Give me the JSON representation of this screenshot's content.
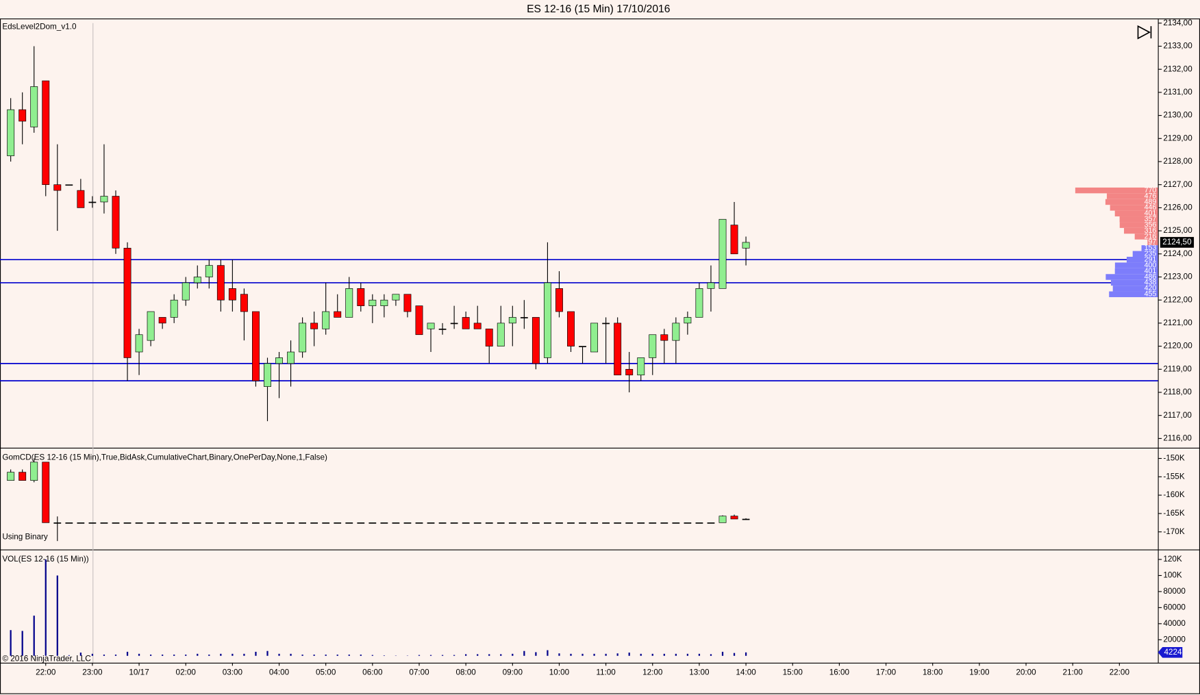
{
  "window_title": "ES 12-16 (15 Min)  17/10/2016",
  "copyright": "© 2016 NinjaTrader, LLC",
  "chart_data": [
    {
      "type": "candlestick",
      "label": "EdsLevel2Dom_v1.0",
      "x": [
        0,
        1,
        2,
        3,
        4,
        5,
        6,
        7,
        8,
        9,
        10,
        11,
        12,
        13,
        14,
        15,
        16,
        17,
        18,
        19,
        20,
        21,
        22,
        23,
        24,
        25,
        26,
        27,
        28,
        29,
        30,
        31,
        32,
        33,
        34,
        35,
        36,
        37,
        38,
        39,
        40,
        41,
        42,
        43,
        44,
        45,
        46,
        47,
        48,
        49,
        50,
        51,
        52,
        53,
        54,
        55,
        56,
        57,
        58,
        59,
        60,
        61,
        62,
        63
      ],
      "open": [
        2128.25,
        2130.25,
        2129.5,
        2131.5,
        2127,
        2127,
        2126.75,
        2126.25,
        2126.25,
        2126.5,
        2124.25,
        2119.75,
        2120.25,
        2121.25,
        2121.25,
        2122,
        2122.75,
        2123,
        2123.5,
        2122.5,
        2122.25,
        2121.5,
        2118.25,
        2119.25,
        2119.25,
        2119.75,
        2121,
        2120.75,
        2121.5,
        2121.25,
        2122.5,
        2121.75,
        2121.75,
        2122,
        2122.25,
        2121.75,
        2120.75,
        2120.75,
        2121,
        2121.25,
        2121,
        2120.75,
        2120,
        2121,
        2121.25,
        2121.25,
        2119.5,
        2122.5,
        2121.5,
        2120,
        2119.75,
        2121,
        2121,
        2119,
        2118.75,
        2119.5,
        2120.5,
        2120.25,
        2121,
        2121.25,
        2122.5,
        2122.5,
        2125.25,
        2124.25
      ],
      "high": [
        2130.75,
        2131,
        2133,
        2131.5,
        2128.75,
        2127,
        2127.25,
        2126.5,
        2128.75,
        2126.75,
        2124.5,
        2120.75,
        2121.5,
        2121.25,
        2122.25,
        2123,
        2123.5,
        2123.75,
        2123.75,
        2123.75,
        2122.5,
        2121.5,
        2119.5,
        2119.75,
        2120.25,
        2121.25,
        2121.5,
        2122.75,
        2122.25,
        2123,
        2122.75,
        2122.25,
        2122.25,
        2122.25,
        2122.25,
        2121.75,
        2121,
        2121,
        2121.75,
        2121.5,
        2121.75,
        2120.75,
        2121.75,
        2121.75,
        2122,
        2121.25,
        2124.5,
        2123.25,
        2121.5,
        2120,
        2121,
        2121.25,
        2121.25,
        2119.75,
        2119.5,
        2120.5,
        2120.75,
        2121.25,
        2121.5,
        2122.75,
        2123.5,
        2125.5,
        2126.25,
        2124.75
      ],
      "low": [
        2128,
        2128.75,
        2129.25,
        2126.5,
        2125,
        2127,
        2126,
        2126,
        2125.75,
        2124,
        2118.5,
        2118.75,
        2120,
        2120.75,
        2121,
        2121.75,
        2122.5,
        2122.5,
        2121.5,
        2121.5,
        2120.25,
        2118.25,
        2116.75,
        2117.75,
        2118.25,
        2119.5,
        2120,
        2120.5,
        2121.25,
        2121.25,
        2121.5,
        2121,
        2121.25,
        2121.75,
        2121.25,
        2120.5,
        2119.75,
        2120.5,
        2120.75,
        2120.75,
        2120.75,
        2119.25,
        2120,
        2120,
        2120.75,
        2119,
        2119.25,
        2121.25,
        2119.75,
        2119.25,
        2119.75,
        2119.25,
        2118.75,
        2118,
        2118.5,
        2118.75,
        2119.25,
        2119.25,
        2120.5,
        2121.25,
        2121.5,
        2122.5,
        2124,
        2123.5
      ],
      "close": [
        2130.25,
        2129.75,
        2131.25,
        2127,
        2126.75,
        2127,
        2126,
        2126.25,
        2126.5,
        2124.25,
        2119.5,
        2120.5,
        2121.5,
        2121,
        2122,
        2122.75,
        2123,
        2123.5,
        2122,
        2122,
        2121.5,
        2118.5,
        2119.25,
        2119.5,
        2119.75,
        2121,
        2120.75,
        2121.5,
        2121.25,
        2122.5,
        2121.75,
        2122,
        2122,
        2122.25,
        2121.5,
        2120.5,
        2121,
        2120.75,
        2121,
        2120.75,
        2120.75,
        2120,
        2121,
        2121.25,
        2121.25,
        2119.25,
        2122.75,
        2121.5,
        2120,
        2120,
        2121,
        2121,
        2118.75,
        2118.75,
        2119.5,
        2120.5,
        2120.25,
        2121,
        2121.25,
        2122.5,
        2122.75,
        2125.5,
        2124,
        2124.5
      ],
      "up_color": "#90ee90",
      "down_color": "#ff0000",
      "ylim": [
        2115.6,
        2134.2
      ],
      "yticks": [
        {
          "value": 2116,
          "label": "2116,00"
        },
        {
          "value": 2117,
          "label": "2117,00"
        },
        {
          "value": 2118,
          "label": "2118,00"
        },
        {
          "value": 2119,
          "label": "2119,00"
        },
        {
          "value": 2120,
          "label": "2120,00"
        },
        {
          "value": 2121,
          "label": "2121,00"
        },
        {
          "value": 2122,
          "label": "2122,00"
        },
        {
          "value": 2123,
          "label": "2123,00"
        },
        {
          "value": 2124,
          "label": "2124,00"
        },
        {
          "value": 2125,
          "label": "2125,00"
        },
        {
          "value": 2126,
          "label": "2126,00"
        },
        {
          "value": 2127,
          "label": "2127,00"
        },
        {
          "value": 2128,
          "label": "2128,00"
        },
        {
          "value": 2129,
          "label": "2129,00"
        },
        {
          "value": 2130,
          "label": "2130,00"
        },
        {
          "value": 2131,
          "label": "2131,00"
        },
        {
          "value": 2132,
          "label": "2132,00"
        },
        {
          "value": 2133,
          "label": "2133,00"
        },
        {
          "value": 2134,
          "label": "2134,00"
        }
      ],
      "hlines": [
        2123.75,
        2122.75,
        2119.25,
        2118.5
      ],
      "hline_color": "#0000cd",
      "last_price": {
        "value": 2124.5,
        "label": "2124,50"
      },
      "profile": [
        {
          "color": "#f38585",
          "levels": [
            2126.75,
            2126.5,
            2126.25,
            2126,
            2125.75,
            2125.5,
            2125.25,
            2125,
            2124.75,
            2124.5
          ],
          "values": [
            770,
            476,
            489,
            446,
            401,
            357,
            356,
            316,
            216,
            97
          ]
        },
        {
          "color": "#7d7dfb",
          "levels": [
            2124.25,
            2124,
            2123.75,
            2123.5,
            2123.25,
            2123,
            2122.75,
            2122.5,
            2122.25
          ],
          "values": [
            153,
            235,
            291,
            400,
            401,
            486,
            438,
            420,
            455
          ]
        }
      ]
    },
    {
      "type": "candlestick",
      "label": "GomCD(ES 12-16 (15 Min),True,BidAsk,CumulativeChart,Binary,OnePerDay,None,1,False)",
      "note": "Using Binary",
      "x": [
        0,
        1,
        2,
        3,
        4,
        5,
        6,
        7,
        8,
        9,
        10,
        11,
        12,
        13,
        14,
        15,
        16,
        17,
        18,
        19,
        20,
        21,
        22,
        23,
        24,
        25,
        26,
        27,
        28,
        29,
        30,
        31,
        32,
        33,
        34,
        35,
        36,
        37,
        38,
        39,
        40,
        41,
        42,
        43,
        44,
        45,
        46,
        47,
        48,
        49,
        50,
        51,
        52,
        53,
        54,
        55,
        56,
        57,
        58,
        59,
        60,
        61,
        62,
        63
      ],
      "open": [
        -156000,
        -153750,
        -156000,
        -151000,
        -167500,
        -167500,
        -167500,
        -167500,
        -167500,
        -167500,
        -167500,
        -167500,
        -167500,
        -167500,
        -167500,
        -167500,
        -167500,
        -167500,
        -167500,
        -167500,
        -167500,
        -167500,
        -167500,
        -167500,
        -167500,
        -167500,
        -167500,
        -167500,
        -167500,
        -167500,
        -167500,
        -167500,
        -167500,
        -167500,
        -167500,
        -167500,
        -167500,
        -167500,
        -167500,
        -167500,
        -167500,
        -167500,
        -167500,
        -167500,
        -167500,
        -167500,
        -167500,
        -167500,
        -167500,
        -167500,
        -167500,
        -167500,
        -167500,
        -167500,
        -167500,
        -167500,
        -167500,
        -167500,
        -167500,
        -167500,
        -167500,
        -167500,
        -165700,
        -166500
      ],
      "high": [
        -153000,
        -153000,
        -150000,
        -151000,
        -165800,
        -167500,
        -167500,
        -167500,
        -167500,
        -167500,
        -167500,
        -167500,
        -167500,
        -167500,
        -167500,
        -167500,
        -167500,
        -167500,
        -167500,
        -167500,
        -167500,
        -167500,
        -167500,
        -167500,
        -167500,
        -167500,
        -167500,
        -167500,
        -167500,
        -167500,
        -167500,
        -167500,
        -167500,
        -167500,
        -167500,
        -167500,
        -167500,
        -167500,
        -167500,
        -167500,
        -167500,
        -167500,
        -167500,
        -167500,
        -167500,
        -167500,
        -167500,
        -167500,
        -167500,
        -167500,
        -167500,
        -167500,
        -167500,
        -167500,
        -167500,
        -167500,
        -167500,
        -167500,
        -167500,
        -167500,
        -167500,
        -165500,
        -165300,
        -166300
      ],
      "low": [
        -156000,
        -156000,
        -156500,
        -167500,
        -172500,
        -167500,
        -167500,
        -167500,
        -167500,
        -167500,
        -167500,
        -167500,
        -167500,
        -167500,
        -167500,
        -167500,
        -167500,
        -167500,
        -167500,
        -167500,
        -167500,
        -167500,
        -167500,
        -167500,
        -167500,
        -167500,
        -167500,
        -167500,
        -167500,
        -167500,
        -167500,
        -167500,
        -167500,
        -167500,
        -167500,
        -167500,
        -167500,
        -167500,
        -167500,
        -167500,
        -167500,
        -167500,
        -167500,
        -167500,
        -167500,
        -167500,
        -167500,
        -167500,
        -167500,
        -167500,
        -167500,
        -167500,
        -167500,
        -167500,
        -167500,
        -167500,
        -167500,
        -167500,
        -167500,
        -167500,
        -167500,
        -167500,
        -166500,
        -166700
      ],
      "close": [
        -153750,
        -156000,
        -151000,
        -167500,
        -167500,
        -167500,
        -167500,
        -167500,
        -167500,
        -167500,
        -167500,
        -167500,
        -167500,
        -167500,
        -167500,
        -167500,
        -167500,
        -167500,
        -167500,
        -167500,
        -167500,
        -167500,
        -167500,
        -167500,
        -167500,
        -167500,
        -167500,
        -167500,
        -167500,
        -167500,
        -167500,
        -167500,
        -167500,
        -167500,
        -167500,
        -167500,
        -167500,
        -167500,
        -167500,
        -167500,
        -167500,
        -167500,
        -167500,
        -167500,
        -167500,
        -167500,
        -167500,
        -167500,
        -167500,
        -167500,
        -167500,
        -167500,
        -167500,
        -167500,
        -167500,
        -167500,
        -167500,
        -167500,
        -167500,
        -167500,
        -167500,
        -165700,
        -166500,
        -166500
      ],
      "up_color": "#90ee90",
      "down_color": "#ff0000",
      "ylim": [
        -174800,
        -147500
      ],
      "yticks": [
        {
          "value": -150000,
          "label": "-150K"
        },
        {
          "value": -155000,
          "label": "-155K"
        },
        {
          "value": -160000,
          "label": "-160K"
        },
        {
          "value": -165000,
          "label": "-165K"
        },
        {
          "value": -170000,
          "label": "-170K"
        }
      ]
    },
    {
      "type": "bar",
      "label": "VOL(ES 12-16 (15 Min))",
      "color": "#00008b",
      "x": [
        0,
        1,
        2,
        3,
        4,
        5,
        6,
        7,
        8,
        9,
        10,
        11,
        12,
        13,
        14,
        15,
        16,
        17,
        18,
        19,
        20,
        21,
        22,
        23,
        24,
        25,
        26,
        27,
        28,
        29,
        30,
        31,
        32,
        33,
        34,
        35,
        36,
        37,
        38,
        39,
        40,
        41,
        42,
        43,
        44,
        45,
        46,
        47,
        48,
        49,
        50,
        51,
        52,
        53,
        54,
        55,
        56,
        57,
        58,
        59,
        60,
        61,
        62,
        63
      ],
      "values": [
        32000,
        31000,
        50000,
        120000,
        100000,
        800,
        4000,
        2500,
        1500,
        1500,
        5000,
        2500,
        1500,
        1500,
        1500,
        1500,
        2500,
        1500,
        2500,
        2500,
        2500,
        5000,
        6000,
        2500,
        2500,
        1500,
        1500,
        1500,
        1500,
        1500,
        1500,
        1000,
        500,
        300,
        300,
        1000,
        1000,
        1000,
        1000,
        2000,
        2000,
        2000,
        2000,
        2500,
        6000,
        4500,
        7000,
        3000,
        2500,
        2500,
        2500,
        2500,
        3000,
        4000,
        2500,
        2500,
        2500,
        2500,
        2500,
        2500,
        2000,
        5000,
        3500,
        4224
      ],
      "ylim": [
        -8600,
        130500
      ],
      "yticks": [
        20000,
        40000,
        60000,
        80000,
        {
          "value": 100000,
          "label": "100K"
        },
        {
          "value": 120000,
          "label": "120K"
        }
      ],
      "xlim": [
        -0.918,
        98.3
      ],
      "xticks": [
        {
          "value": 3,
          "label": "22:00"
        },
        {
          "value": 7,
          "label": "23:00"
        },
        {
          "value": 11,
          "label": "10/17"
        },
        {
          "value": 15,
          "label": "02:00"
        },
        {
          "value": 19,
          "label": "03:00"
        },
        {
          "value": 23,
          "label": "04:00"
        },
        {
          "value": 27,
          "label": "05:00"
        },
        {
          "value": 31,
          "label": "06:00"
        },
        {
          "value": 35,
          "label": "07:00"
        },
        {
          "value": 39,
          "label": "08:00"
        },
        {
          "value": 43,
          "label": "09:00"
        },
        {
          "value": 47,
          "label": "10:00"
        },
        {
          "value": 51,
          "label": "11:00"
        },
        {
          "value": 55,
          "label": "12:00"
        },
        {
          "value": 59,
          "label": "13:00"
        },
        {
          "value": 63,
          "label": "14:00"
        },
        {
          "value": 67,
          "label": "15:00"
        },
        {
          "value": 71,
          "label": "16:00"
        },
        {
          "value": 75,
          "label": "17:00"
        },
        {
          "value": 79,
          "label": "18:00"
        },
        {
          "value": 83,
          "label": "19:00"
        },
        {
          "value": 87,
          "label": "20:00"
        },
        {
          "value": 91,
          "label": "21:00"
        },
        {
          "value": 95,
          "label": "22:00"
        }
      ]
    }
  ]
}
